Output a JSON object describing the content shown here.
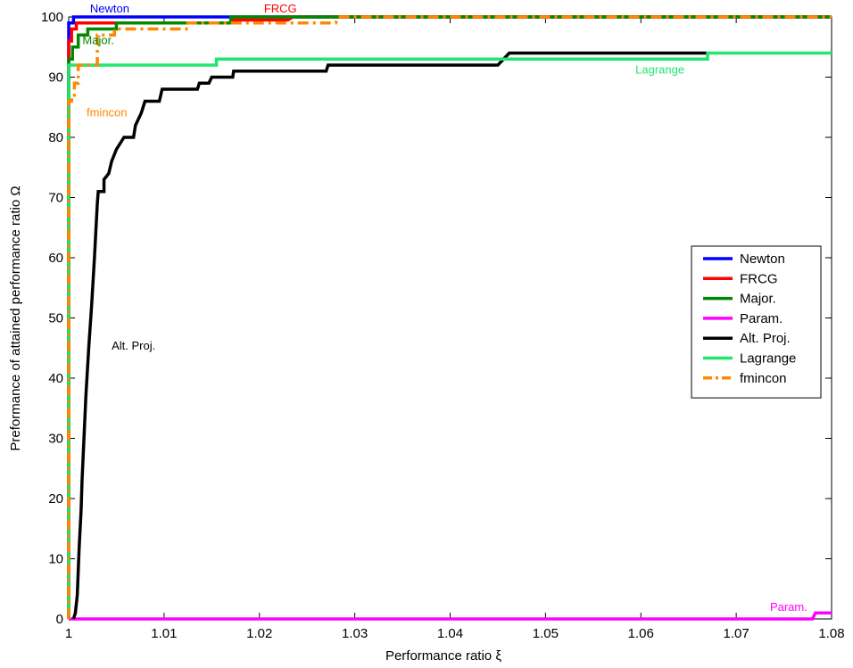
{
  "chart_data": {
    "type": "line",
    "xlabel": "Performance ratio ξ",
    "ylabel": "Preformance of attained performance ratio Ω",
    "xlim": [
      1,
      1.08
    ],
    "ylim": [
      0,
      100
    ],
    "xticks": [
      1,
      1.01,
      1.02,
      1.03,
      1.04,
      1.05,
      1.06,
      1.07,
      1.08
    ],
    "xtick_labels": [
      "1",
      "1.01",
      "1.02",
      "1.03",
      "1.04",
      "1.05",
      "1.06",
      "1.07",
      "1.08"
    ],
    "yticks": [
      0,
      10,
      20,
      30,
      40,
      50,
      60,
      70,
      80,
      90,
      100
    ],
    "ytick_labels": [
      "0",
      "10",
      "20",
      "30",
      "40",
      "50",
      "60",
      "70",
      "80",
      "90",
      "100"
    ],
    "grid": false,
    "legend_position": "right",
    "series": [
      {
        "name": "Newton",
        "color": "#0000ff",
        "dash": "solid",
        "points": [
          [
            1,
            0
          ],
          [
            1,
            99
          ],
          [
            1.0005,
            99
          ],
          [
            1.0005,
            100
          ],
          [
            1.08,
            100
          ]
        ]
      },
      {
        "name": "FRCG",
        "color": "#ff0000",
        "dash": "solid",
        "points": [
          [
            1,
            0
          ],
          [
            1,
            96
          ],
          [
            1.0003,
            96
          ],
          [
            1.0003,
            98
          ],
          [
            1.0008,
            98
          ],
          [
            1.0008,
            99
          ],
          [
            1.017,
            99
          ],
          [
            1.017,
            99.5
          ],
          [
            1.023,
            99.5
          ],
          [
            1.0235,
            100
          ],
          [
            1.08,
            100
          ]
        ]
      },
      {
        "name": "Major.",
        "color": "#008800",
        "dash": "solid",
        "points": [
          [
            1,
            0
          ],
          [
            1,
            93
          ],
          [
            1.0004,
            93
          ],
          [
            1.0004,
            95
          ],
          [
            1.001,
            95
          ],
          [
            1.001,
            97
          ],
          [
            1.002,
            97
          ],
          [
            1.002,
            98
          ],
          [
            1.005,
            98
          ],
          [
            1.005,
            99
          ],
          [
            1.017,
            99
          ],
          [
            1.017,
            100
          ],
          [
            1.08,
            100
          ]
        ]
      },
      {
        "name": "Param.",
        "color": "#ff00ff",
        "dash": "solid",
        "points": [
          [
            1,
            0
          ],
          [
            1.078,
            0
          ],
          [
            1.0783,
            1
          ],
          [
            1.08,
            1
          ]
        ]
      },
      {
        "name": "Alt. Proj.",
        "color": "#000000",
        "dash": "solid",
        "points": [
          [
            1.0005,
            0
          ],
          [
            1.0007,
            1
          ],
          [
            1.0009,
            4
          ],
          [
            1.001,
            8
          ],
          [
            1.0011,
            12
          ],
          [
            1.0013,
            18
          ],
          [
            1.0014,
            23
          ],
          [
            1.0016,
            30
          ],
          [
            1.0018,
            37
          ],
          [
            1.0021,
            45
          ],
          [
            1.0024,
            52
          ],
          [
            1.0027,
            60
          ],
          [
            1.0029,
            66
          ],
          [
            1.003,
            69
          ],
          [
            1.0031,
            71
          ],
          [
            1.0037,
            71
          ],
          [
            1.0037,
            73
          ],
          [
            1.0042,
            74
          ],
          [
            1.0045,
            76
          ],
          [
            1.005,
            78
          ],
          [
            1.0058,
            80
          ],
          [
            1.0068,
            80
          ],
          [
            1.007,
            82
          ],
          [
            1.0076,
            84
          ],
          [
            1.008,
            86
          ],
          [
            1.0095,
            86
          ],
          [
            1.0098,
            88
          ],
          [
            1.0135,
            88
          ],
          [
            1.0137,
            89
          ],
          [
            1.0147,
            89
          ],
          [
            1.015,
            90
          ],
          [
            1.0172,
            90
          ],
          [
            1.0173,
            91
          ],
          [
            1.027,
            91
          ],
          [
            1.0272,
            92
          ],
          [
            1.045,
            92
          ],
          [
            1.0462,
            94
          ],
          [
            1.067,
            94
          ]
        ]
      },
      {
        "name": "Lagrange",
        "color": "#22e66e",
        "dash": "solid",
        "points": [
          [
            1,
            0
          ],
          [
            1,
            92
          ],
          [
            1.0155,
            92
          ],
          [
            1.0155,
            93
          ],
          [
            1.067,
            93
          ],
          [
            1.067,
            94
          ],
          [
            1.08,
            94
          ]
        ]
      },
      {
        "name": "fmincon",
        "color": "#ff8800",
        "dash": "dashdot",
        "points": [
          [
            1,
            0
          ],
          [
            1,
            86
          ],
          [
            1.0003,
            86
          ],
          [
            1.0003,
            87
          ],
          [
            1.0006,
            87
          ],
          [
            1.0006,
            89
          ],
          [
            1.001,
            89
          ],
          [
            1.001,
            92
          ],
          [
            1.003,
            92
          ],
          [
            1.003,
            97
          ],
          [
            1.0048,
            97
          ],
          [
            1.0048,
            98
          ],
          [
            1.0125,
            98
          ],
          [
            1.0125,
            99
          ],
          [
            1.028,
            99
          ],
          [
            1.0283,
            100
          ],
          [
            1.08,
            100
          ]
        ]
      }
    ],
    "annotations": [
      {
        "text": "Newton",
        "x": 1.0043,
        "y": 101.3,
        "color": "#0000ff"
      },
      {
        "text": "FRCG",
        "x": 1.0222,
        "y": 101.3,
        "color": "#ff0000"
      },
      {
        "text": "Major.",
        "x": 1.0031,
        "y": 96.1,
        "color": "#008800"
      },
      {
        "text": "fmincon",
        "x": 1.004,
        "y": 84.1,
        "color": "#ff8800"
      },
      {
        "text": "Lagrange",
        "x": 1.062,
        "y": 91.2,
        "color": "#22e66e"
      },
      {
        "text": "Alt. Proj.",
        "x": 1.0068,
        "y": 45.3,
        "color": "#000000"
      },
      {
        "text": "Param.",
        "x": 1.0755,
        "y": 1.9,
        "color": "#ff00ff"
      }
    ]
  }
}
